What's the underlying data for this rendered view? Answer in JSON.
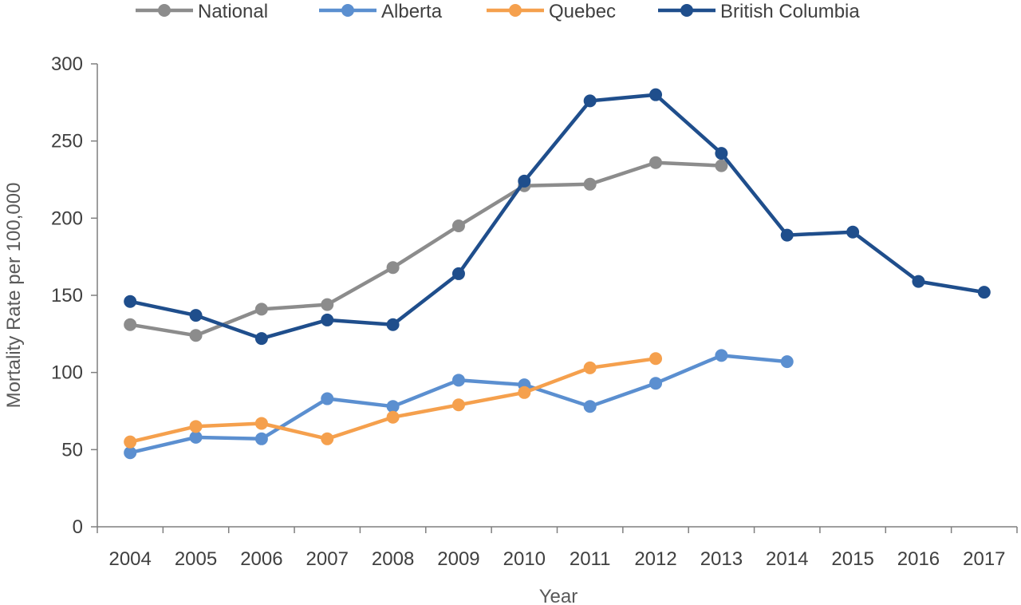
{
  "chart_data": {
    "type": "line",
    "title": "",
    "xlabel": "Year",
    "ylabel": "Mortality Rate per 100,000",
    "ylim": [
      0,
      300
    ],
    "yticks": [
      0,
      50,
      100,
      150,
      200,
      250,
      300
    ],
    "grid": false,
    "legend_position": "top",
    "categories": [
      "2004",
      "2005",
      "2006",
      "2007",
      "2008",
      "2009",
      "2010",
      "2011",
      "2012",
      "2013",
      "2014",
      "2015",
      "2016",
      "2017"
    ],
    "series": [
      {
        "name": "National",
        "color": "#8c8c8c",
        "values": [
          131,
          124,
          141,
          144,
          168,
          195,
          221,
          222,
          236,
          234,
          null,
          null,
          null,
          null
        ]
      },
      {
        "name": "Alberta",
        "color": "#5b8fd0",
        "values": [
          48,
          58,
          57,
          83,
          78,
          95,
          92,
          78,
          93,
          111,
          107,
          null,
          null,
          null
        ]
      },
      {
        "name": "Quebec",
        "color": "#f5a04d",
        "values": [
          55,
          65,
          67,
          57,
          71,
          79,
          87,
          103,
          109,
          null,
          null,
          null,
          null,
          null
        ]
      },
      {
        "name": "British Columbia",
        "color": "#1f4e8c",
        "values": [
          146,
          137,
          122,
          134,
          131,
          164,
          224,
          276,
          280,
          242,
          189,
          191,
          159,
          152
        ]
      }
    ]
  }
}
